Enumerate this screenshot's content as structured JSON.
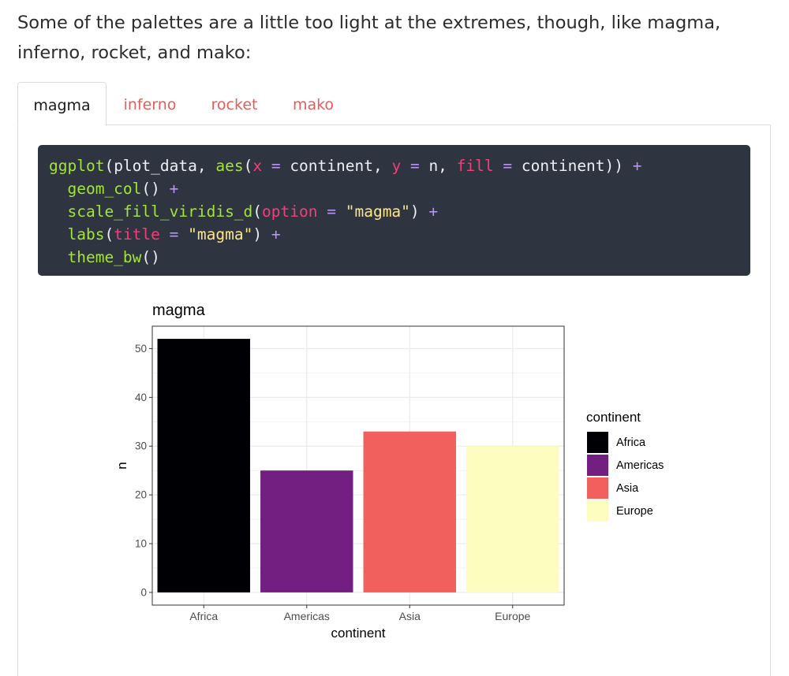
{
  "intro_text": "Some of the palettes are a little too light at the extremes, though, like magma, inferno, rocket, and mako:",
  "tabs": [
    {
      "label": "magma",
      "active": true
    },
    {
      "label": "inferno",
      "active": false
    },
    {
      "label": "rocket",
      "active": false
    },
    {
      "label": "mako",
      "active": false
    }
  ],
  "code": {
    "line1": {
      "fn": "ggplot",
      "a": "(plot_data, ",
      "fn2": "aes",
      "b": "(",
      "arg1": "x",
      "eq1": " = ",
      "c": "continent, ",
      "arg2": "y",
      "eq2": " = ",
      "d": "n, ",
      "arg3": "fill",
      "eq3": " = ",
      "e": "continent)) ",
      "plus": "+"
    },
    "line2": {
      "fn": "geom_col",
      "a": "() ",
      "plus": "+"
    },
    "line3": {
      "fn": "scale_fill_viridis_d",
      "a": "(",
      "arg": "option",
      "eq": " = ",
      "str": "\"magma\"",
      "b": ") ",
      "plus": "+"
    },
    "line4": {
      "fn": "labs",
      "a": "(",
      "arg": "title",
      "eq": " = ",
      "str": "\"magma\"",
      "b": ") ",
      "plus": "+"
    },
    "line5": {
      "fn": "theme_bw",
      "a": "()"
    }
  },
  "chart_data": {
    "type": "bar",
    "title": "magma",
    "xlabel": "continent",
    "ylabel": "n",
    "categories": [
      "Africa",
      "Americas",
      "Asia",
      "Europe"
    ],
    "values": [
      52,
      25,
      33,
      30
    ],
    "colors": [
      "#000004",
      "#721f81",
      "#f1605d",
      "#fcfdbf"
    ],
    "ylim": [
      -2.6,
      54.6
    ],
    "yticks": [
      0,
      10,
      20,
      30,
      40,
      50
    ],
    "grid": true,
    "legend": {
      "title": "continent",
      "position": "right",
      "entries": [
        "Africa",
        "Americas",
        "Asia",
        "Europe"
      ]
    }
  }
}
